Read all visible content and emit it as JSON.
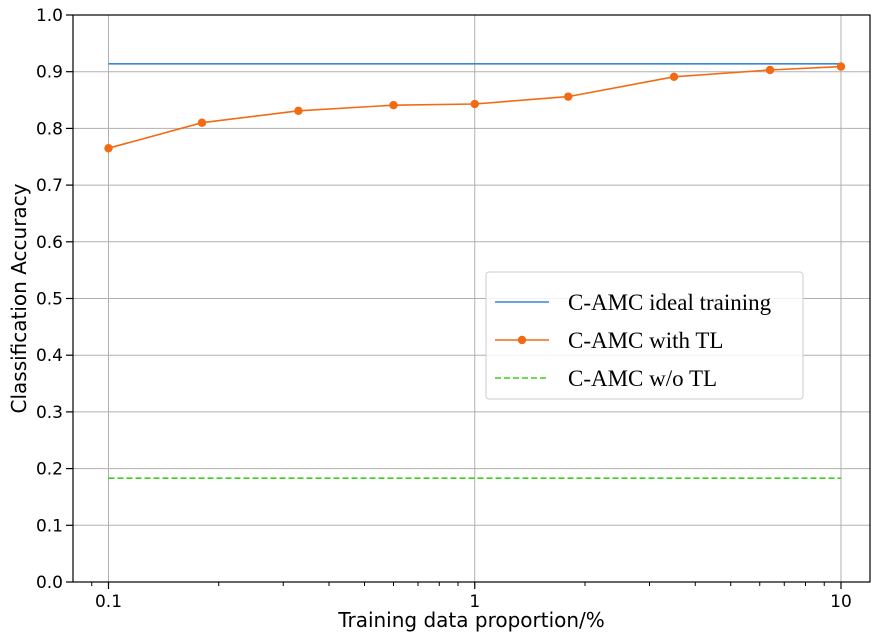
{
  "chart_data": {
    "type": "line",
    "xlabel": "Training data proportion/%",
    "ylabel": "Classification Accuracy",
    "xscale": "log",
    "xlim": [
      0.08,
      12
    ],
    "ylim": [
      0.0,
      1.0
    ],
    "xticks": [
      {
        "value": 0.1,
        "label": "0.1"
      },
      {
        "value": 1,
        "label": "1"
      },
      {
        "value": 10,
        "label": "10"
      }
    ],
    "yticks": [
      {
        "value": 0.0,
        "label": "0.0"
      },
      {
        "value": 0.1,
        "label": "0.1"
      },
      {
        "value": 0.2,
        "label": "0.2"
      },
      {
        "value": 0.3,
        "label": "0.3"
      },
      {
        "value": 0.4,
        "label": "0.4"
      },
      {
        "value": 0.5,
        "label": "0.5"
      },
      {
        "value": 0.6,
        "label": "0.6"
      },
      {
        "value": 0.7,
        "label": "0.7"
      },
      {
        "value": 0.8,
        "label": "0.8"
      },
      {
        "value": 0.9,
        "label": "0.9"
      },
      {
        "value": 1.0,
        "label": "1.0"
      }
    ],
    "grid": true,
    "legend_position": "center-right",
    "series": [
      {
        "name": "C-AMC ideal training",
        "color": "#3a86d4",
        "style": "solid",
        "marker": "none",
        "x": [
          0.1,
          10
        ],
        "y": [
          0.914,
          0.914
        ]
      },
      {
        "name": "C-AMC with TL",
        "color": "#f46a12",
        "style": "solid",
        "marker": "circle",
        "x": [
          0.1,
          0.18,
          0.33,
          0.6,
          1.0,
          1.8,
          3.5,
          6.4,
          10
        ],
        "y": [
          0.765,
          0.81,
          0.831,
          0.841,
          0.843,
          0.856,
          0.891,
          0.903,
          0.909
        ]
      },
      {
        "name": "C-AMC w/o TL",
        "color": "#3ccf1e",
        "style": "dashed",
        "marker": "none",
        "x": [
          0.1,
          10
        ],
        "y": [
          0.183,
          0.183
        ]
      }
    ]
  }
}
